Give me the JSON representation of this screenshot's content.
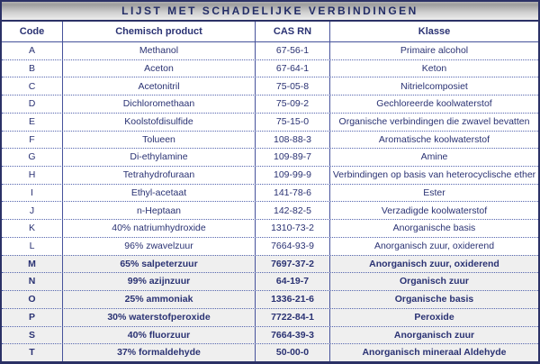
{
  "title": "LIJST MET SCHADELIJKE VERBINDINGEN",
  "columns": {
    "code": "Code",
    "product": "Chemisch product",
    "cas": "CAS RN",
    "klasse": "Klasse"
  },
  "colors": {
    "text_navy": "#2a3273",
    "border_navy": "#2b3166",
    "grid_blue": "#46529b",
    "dotted_blue": "#5565ae",
    "emphasized_row_bg": "#efefef",
    "title_gradient_top": "#9d9d9d",
    "title_gradient_bottom": "#ededed"
  },
  "rows": [
    {
      "code": "A",
      "product": "Methanol",
      "cas": "67-56-1",
      "klasse": "Primaire alcohol",
      "emphasized": false
    },
    {
      "code": "B",
      "product": "Aceton",
      "cas": "67-64-1",
      "klasse": "Keton",
      "emphasized": false
    },
    {
      "code": "C",
      "product": "Acetonitril",
      "cas": "75-05-8",
      "klasse": "Nitrielcomposiet",
      "emphasized": false
    },
    {
      "code": "D",
      "product": "Dichloromethaan",
      "cas": "75-09-2",
      "klasse": "Gechloreerde koolwaterstof",
      "emphasized": false
    },
    {
      "code": "E",
      "product": "Koolstofdisulfide",
      "cas": "75-15-0",
      "klasse": "Organische verbindingen die zwavel bevatten",
      "emphasized": false
    },
    {
      "code": "F",
      "product": "Tolueen",
      "cas": "108-88-3",
      "klasse": "Aromatische koolwaterstof",
      "emphasized": false
    },
    {
      "code": "G",
      "product": "Di-ethylamine",
      "cas": "109-89-7",
      "klasse": "Amine",
      "emphasized": false
    },
    {
      "code": "H",
      "product": "Tetrahydrofuraan",
      "cas": "109-99-9",
      "klasse": "Verbindingen op basis van heterocyclische ether",
      "emphasized": false
    },
    {
      "code": "I",
      "product": "Ethyl-acetaat",
      "cas": "141-78-6",
      "klasse": "Ester",
      "emphasized": false
    },
    {
      "code": "J",
      "product": "n-Heptaan",
      "cas": "142-82-5",
      "klasse": "Verzadigde koolwaterstof",
      "emphasized": false
    },
    {
      "code": "K",
      "product": "40% natriumhydroxide",
      "cas": "1310-73-2",
      "klasse": "Anorganische basis",
      "emphasized": false
    },
    {
      "code": "L",
      "product": "96% zwavelzuur",
      "cas": "7664-93-9",
      "klasse": "Anorganisch zuur, oxiderend",
      "emphasized": false
    },
    {
      "code": "M",
      "product": "65% salpeterzuur",
      "cas": "7697-37-2",
      "klasse": "Anorganisch zuur, oxiderend",
      "emphasized": true
    },
    {
      "code": "N",
      "product": "99% azijnzuur",
      "cas": "64-19-7",
      "klasse": "Organisch zuur",
      "emphasized": true
    },
    {
      "code": "O",
      "product": "25% ammoniak",
      "cas": "1336-21-6",
      "klasse": "Organische basis",
      "emphasized": true
    },
    {
      "code": "P",
      "product": "30% waterstofperoxide",
      "cas": "7722-84-1",
      "klasse": "Peroxide",
      "emphasized": true
    },
    {
      "code": "S",
      "product": "40% fluorzuur",
      "cas": "7664-39-3",
      "klasse": "Anorganisch zuur",
      "emphasized": true
    },
    {
      "code": "T",
      "product": "37% formaldehyde",
      "cas": "50-00-0",
      "klasse": "Anorganisch mineraal Aldehyde",
      "emphasized": true
    }
  ]
}
